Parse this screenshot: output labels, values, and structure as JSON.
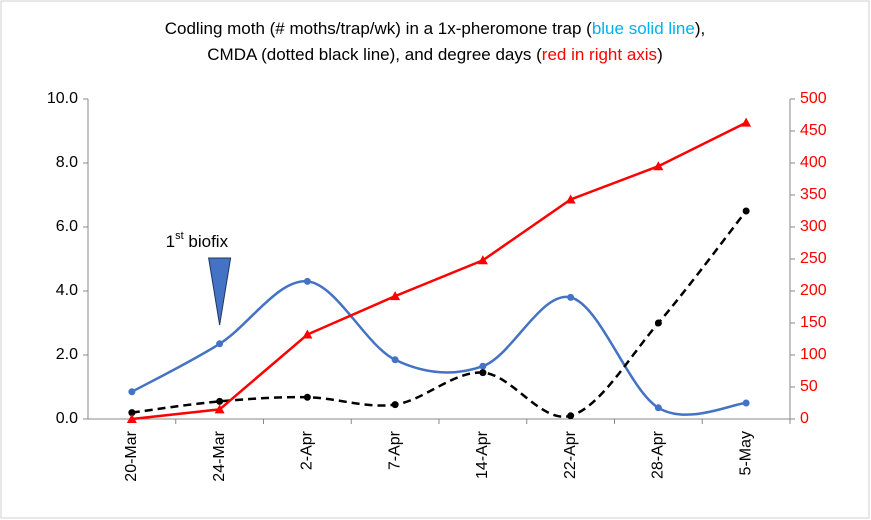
{
  "chart_data": {
    "type": "line",
    "title": [
      [
        {
          "text": "Codling moth (# moths/trap/wk) in a 1x-pheromone trap (",
          "color": "#000000"
        },
        {
          "text": "blue solid line",
          "color": "#00b0f0"
        },
        {
          "text": "),",
          "color": "#000000"
        }
      ],
      [
        {
          "text": "CMDA (dotted black line), and degree days (",
          "color": "#000000"
        },
        {
          "text": "red in right axis",
          "color": "#ff0000"
        },
        {
          "text": ")",
          "color": "#000000"
        }
      ]
    ],
    "categories": [
      "20-Mar",
      "24-Mar",
      "2-Apr",
      "7-Apr",
      "14-Apr",
      "22-Apr",
      "28-Apr",
      "5-May"
    ],
    "series": [
      {
        "color": "#4472c4",
        "smooth": true,
        "dashed": false,
        "marker": "circle",
        "values": [
          0.85,
          2.35,
          4.3,
          1.85,
          1.65,
          3.8,
          0.35,
          0.5
        ]
      },
      {
        "color": "#000000",
        "smooth": true,
        "dashed": true,
        "marker": "circle",
        "values": [
          0.2,
          0.55,
          0.68,
          0.45,
          1.45,
          0.1,
          3.0,
          6.5
        ]
      },
      {
        "color": "#ff0000",
        "smooth": false,
        "dashed": false,
        "marker": "triangle",
        "axis": "y2",
        "values": [
          0,
          15,
          132,
          192,
          248,
          343,
          395,
          463
        ]
      }
    ],
    "ylim": [
      0,
      10
    ],
    "yticks": [
      {
        "value": 0,
        "label": "0.0"
      },
      {
        "value": 2,
        "label": "2.0"
      },
      {
        "value": 4,
        "label": "4.0"
      },
      {
        "value": 6,
        "label": "6.0"
      },
      {
        "value": 8,
        "label": "8.0"
      },
      {
        "value": 10,
        "label": "10.0"
      }
    ],
    "y2lim": [
      0,
      500
    ],
    "y2ticks": [
      0,
      50,
      100,
      150,
      200,
      250,
      300,
      350,
      400,
      450,
      500
    ],
    "y2color": "#ff0000",
    "annotation": {
      "text": [
        "1",
        "st",
        " biofix"
      ],
      "category": "24-Mar"
    }
  }
}
